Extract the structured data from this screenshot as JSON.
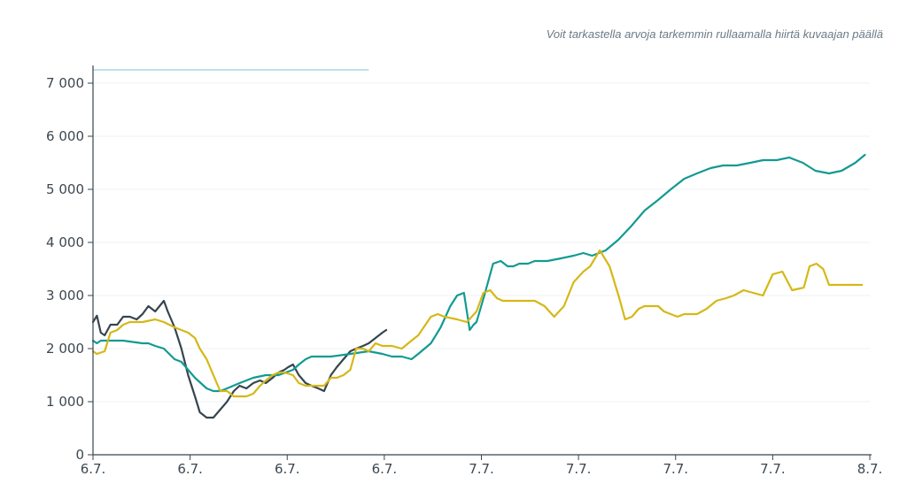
{
  "hint": "Voit tarkastella arvoja tarkemmin rullaamalla hiirtä kuvaajan päällä",
  "chart_data": {
    "type": "line",
    "x_range": [
      0,
      8
    ],
    "ylim": [
      0,
      7300
    ],
    "y_ticks": [
      0,
      1000,
      2000,
      3000,
      4000,
      5000,
      6000,
      7000
    ],
    "y_tick_labels": [
      "0",
      "1 000",
      "2 000",
      "3 000",
      "4 000",
      "5 000",
      "6 000",
      "7 000"
    ],
    "x_ticks": [
      0,
      1,
      2,
      3,
      4,
      5,
      6,
      7,
      8
    ],
    "x_tick_labels": [
      "6.7.",
      "6.7.",
      "6.7.",
      "6.7.",
      "7.7.",
      "7.7.",
      "7.7.",
      "7.7.",
      "8.7."
    ],
    "reference_line": {
      "value": 7250,
      "x_start": 0,
      "x_end": 2.84,
      "color": "#7cc4cc"
    },
    "series": [
      {
        "name": "dark",
        "color": "#36454f",
        "x": [
          0,
          0.04,
          0.08,
          0.12,
          0.18,
          0.25,
          0.31,
          0.38,
          0.45,
          0.51,
          0.57,
          0.64,
          0.73,
          0.77,
          0.84,
          0.91,
          0.98,
          1.05,
          1.1,
          1.17,
          1.24,
          1.31,
          1.38,
          1.45,
          1.51,
          1.58,
          1.65,
          1.72,
          1.78,
          1.85,
          1.91,
          1.97,
          2.01,
          2.06,
          2.12,
          2.19,
          2.25,
          2.32,
          2.38,
          2.45,
          2.51,
          2.58,
          2.65,
          2.71,
          2.78,
          2.84,
          2.91,
          2.98,
          3.02
        ],
        "y": [
          2500,
          2620,
          2300,
          2250,
          2450,
          2450,
          2600,
          2600,
          2550,
          2650,
          2800,
          2700,
          2900,
          2700,
          2400,
          2000,
          1500,
          1100,
          800,
          700,
          700,
          850,
          1000,
          1200,
          1300,
          1250,
          1350,
          1400,
          1350,
          1450,
          1550,
          1600,
          1650,
          1700,
          1500,
          1350,
          1300,
          1250,
          1200,
          1500,
          1650,
          1800,
          1950,
          2000,
          2050,
          2100,
          2200,
          2300,
          2350
        ]
      },
      {
        "name": "teal",
        "color": "#129a92",
        "x": [
          0,
          0.04,
          0.08,
          0.31,
          0.51,
          0.57,
          0.64,
          0.73,
          0.84,
          0.91,
          0.98,
          1.05,
          1.17,
          1.24,
          1.31,
          1.38,
          1.51,
          1.65,
          1.78,
          1.91,
          2.06,
          2.12,
          2.19,
          2.25,
          2.45,
          2.65,
          2.84,
          2.98,
          3.08,
          3.18,
          3.28,
          3.35,
          3.48,
          3.58,
          3.68,
          3.75,
          3.82,
          3.88,
          3.92,
          3.95,
          4.03,
          4.12,
          4.2,
          4.27,
          4.33,
          4.39,
          4.48,
          4.55,
          4.68,
          4.82,
          4.95,
          5.05,
          5.14,
          5.28,
          5.41,
          5.54,
          5.68,
          5.82,
          5.95,
          6.09,
          6.22,
          6.36,
          6.49,
          6.63,
          6.77,
          6.9,
          7.04,
          7.17,
          7.31,
          7.44,
          7.58,
          7.71,
          7.85,
          7.95
        ],
        "y": [
          2150,
          2100,
          2150,
          2150,
          2100,
          2100,
          2050,
          2000,
          1800,
          1750,
          1600,
          1450,
          1250,
          1200,
          1200,
          1250,
          1350,
          1450,
          1500,
          1500,
          1600,
          1700,
          1800,
          1850,
          1850,
          1900,
          1950,
          1900,
          1850,
          1850,
          1800,
          1900,
          2100,
          2400,
          2800,
          3000,
          3050,
          2350,
          2450,
          2500,
          3000,
          3600,
          3650,
          3550,
          3550,
          3600,
          3600,
          3650,
          3650,
          3700,
          3750,
          3800,
          3750,
          3850,
          4050,
          4300,
          4600,
          4800,
          5000,
          5200,
          5300,
          5400,
          5450,
          5450,
          5500,
          5550,
          5550,
          5600,
          5500,
          5350,
          5300,
          5350,
          5500,
          5650
        ]
      },
      {
        "name": "yellow",
        "color": "#d5b817",
        "x": [
          0,
          0.04,
          0.12,
          0.18,
          0.25,
          0.31,
          0.38,
          0.45,
          0.51,
          0.64,
          0.73,
          0.84,
          0.98,
          1.05,
          1.1,
          1.17,
          1.24,
          1.31,
          1.38,
          1.45,
          1.51,
          1.58,
          1.65,
          1.72,
          1.78,
          1.85,
          1.91,
          1.97,
          2.06,
          2.12,
          2.19,
          2.25,
          2.38,
          2.45,
          2.51,
          2.58,
          2.65,
          2.71,
          2.78,
          2.84,
          2.91,
          2.98,
          3.08,
          3.18,
          3.28,
          3.35,
          3.48,
          3.55,
          3.62,
          3.75,
          3.85,
          3.95,
          4.02,
          4.09,
          4.16,
          4.22,
          4.29,
          4.36,
          4.45,
          4.55,
          4.65,
          4.75,
          4.85,
          4.95,
          5.05,
          5.12,
          5.22,
          5.32,
          5.42,
          5.48,
          5.55,
          5.62,
          5.68,
          5.75,
          5.82,
          5.88,
          5.95,
          6.02,
          6.09,
          6.16,
          6.22,
          6.32,
          6.42,
          6.52,
          6.6,
          6.7,
          6.8,
          6.9,
          7.0,
          7.1,
          7.2,
          7.32,
          7.38,
          7.45,
          7.52,
          7.58,
          7.65,
          7.72,
          7.78,
          7.85,
          7.92
        ],
        "y": [
          1950,
          1900,
          1950,
          2300,
          2350,
          2450,
          2500,
          2500,
          2500,
          2550,
          2500,
          2400,
          2300,
          2200,
          2000,
          1800,
          1500,
          1200,
          1200,
          1100,
          1100,
          1100,
          1150,
          1300,
          1400,
          1500,
          1550,
          1550,
          1500,
          1350,
          1300,
          1300,
          1300,
          1450,
          1450,
          1500,
          1600,
          2000,
          2000,
          1950,
          2100,
          2050,
          2050,
          2000,
          2150,
          2250,
          2600,
          2650,
          2600,
          2550,
          2500,
          2700,
          3050,
          3100,
          2950,
          2900,
          2900,
          2900,
          2900,
          2900,
          2800,
          2600,
          2800,
          3250,
          3450,
          3550,
          3850,
          3550,
          2950,
          2550,
          2600,
          2750,
          2800,
          2800,
          2800,
          2700,
          2650,
          2600,
          2650,
          2650,
          2650,
          2750,
          2900,
          2950,
          3000,
          3100,
          3050,
          3000,
          3400,
          3450,
          3100,
          3150,
          3550,
          3600,
          3500,
          3200,
          3200,
          3200,
          3200,
          3200,
          3200
        ]
      }
    ]
  }
}
